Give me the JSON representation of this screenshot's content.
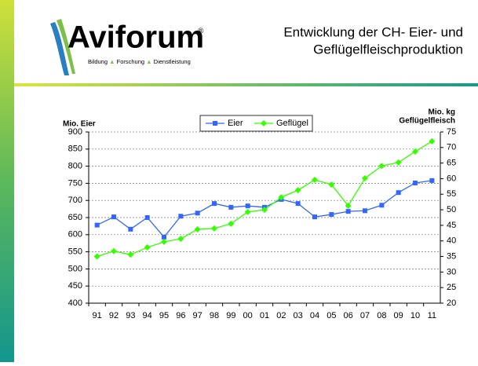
{
  "logo": {
    "name": "Aviforum",
    "mark": "®",
    "tagline": [
      "Bildung",
      "Forschung",
      "Dienstleistung"
    ]
  },
  "chart_data": {
    "type": "line",
    "title": [
      "Entwicklung der CH- Eier- und",
      "Geflügelfleischproduktion"
    ],
    "y_label": "Mio. Eier",
    "y2_label": [
      "Mio. kg",
      "Geflügelfleisch"
    ],
    "categories": [
      "91",
      "92",
      "93",
      "94",
      "95",
      "96",
      "97",
      "98",
      "99",
      "00",
      "01",
      "02",
      "03",
      "04",
      "05",
      "06",
      "07",
      "08",
      "09",
      "10",
      "11"
    ],
    "series": [
      {
        "name": "Eier",
        "color": "#3366ff",
        "marker": "square",
        "values": [
          628,
          652,
          616,
          650,
          593,
          654,
          663,
          691,
          680,
          684,
          680,
          703,
          691,
          652,
          659,
          668,
          670,
          686,
          723,
          751,
          758
        ]
      },
      {
        "name": "Geflügel",
        "color": "#33ff00",
        "marker": "diamond",
        "axis": "y2",
        "values": [
          35,
          36.7,
          35.6,
          37.9,
          39.7,
          40.7,
          43.7,
          44,
          45.5,
          49.3,
          50,
          54,
          56.3,
          59.6,
          58.1,
          51.3,
          60.1,
          64.1,
          65.2,
          68.7,
          72
        ]
      }
    ],
    "ylim": [
      400,
      900
    ],
    "yticks": [
      400,
      450,
      500,
      550,
      600,
      650,
      700,
      750,
      800,
      850,
      900
    ],
    "y2lim": [
      20,
      75
    ],
    "y2ticks": [
      20,
      25,
      30,
      35,
      40,
      45,
      50,
      55,
      60,
      65,
      70,
      75
    ],
    "grid": true,
    "legend": "top"
  }
}
